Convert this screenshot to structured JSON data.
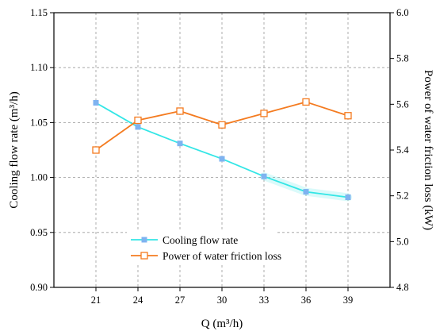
{
  "chart_data": {
    "type": "line",
    "x": [
      21,
      24,
      27,
      30,
      33,
      36,
      39
    ],
    "x_ticks": [
      "21",
      "24",
      "27",
      "30",
      "33",
      "36",
      "39"
    ],
    "xlim": [
      18,
      42
    ],
    "xlabel": "Q (m³/h)",
    "ylabel_left": "Cooling flow rate (m³/h)",
    "ylabel_right": "Power of water friction loss (kW)",
    "ylim_left": [
      0.9,
      1.15
    ],
    "ylim_right": [
      4.8,
      6.0
    ],
    "yticks_left": [
      "0.90",
      "0.95",
      "1.00",
      "1.05",
      "1.10",
      "1.15"
    ],
    "yticks_right": [
      "4.8",
      "5.0",
      "5.2",
      "5.4",
      "5.6",
      "5.8",
      "6.0"
    ],
    "grid": true,
    "legend_position": "lower-center",
    "series": [
      {
        "name": "Cooling flow rate",
        "axis": "left",
        "color": "#33e6e6",
        "marker": "filled-square",
        "marker_color": "#7fb3f0",
        "values": [
          1.068,
          1.046,
          1.031,
          1.017,
          1.001,
          0.987,
          0.982
        ]
      },
      {
        "name": "Power of water friction loss",
        "axis": "right",
        "color": "#f47b20",
        "marker": "open-square",
        "values": [
          5.4,
          5.53,
          5.57,
          5.51,
          5.56,
          5.61,
          5.55
        ]
      }
    ]
  }
}
